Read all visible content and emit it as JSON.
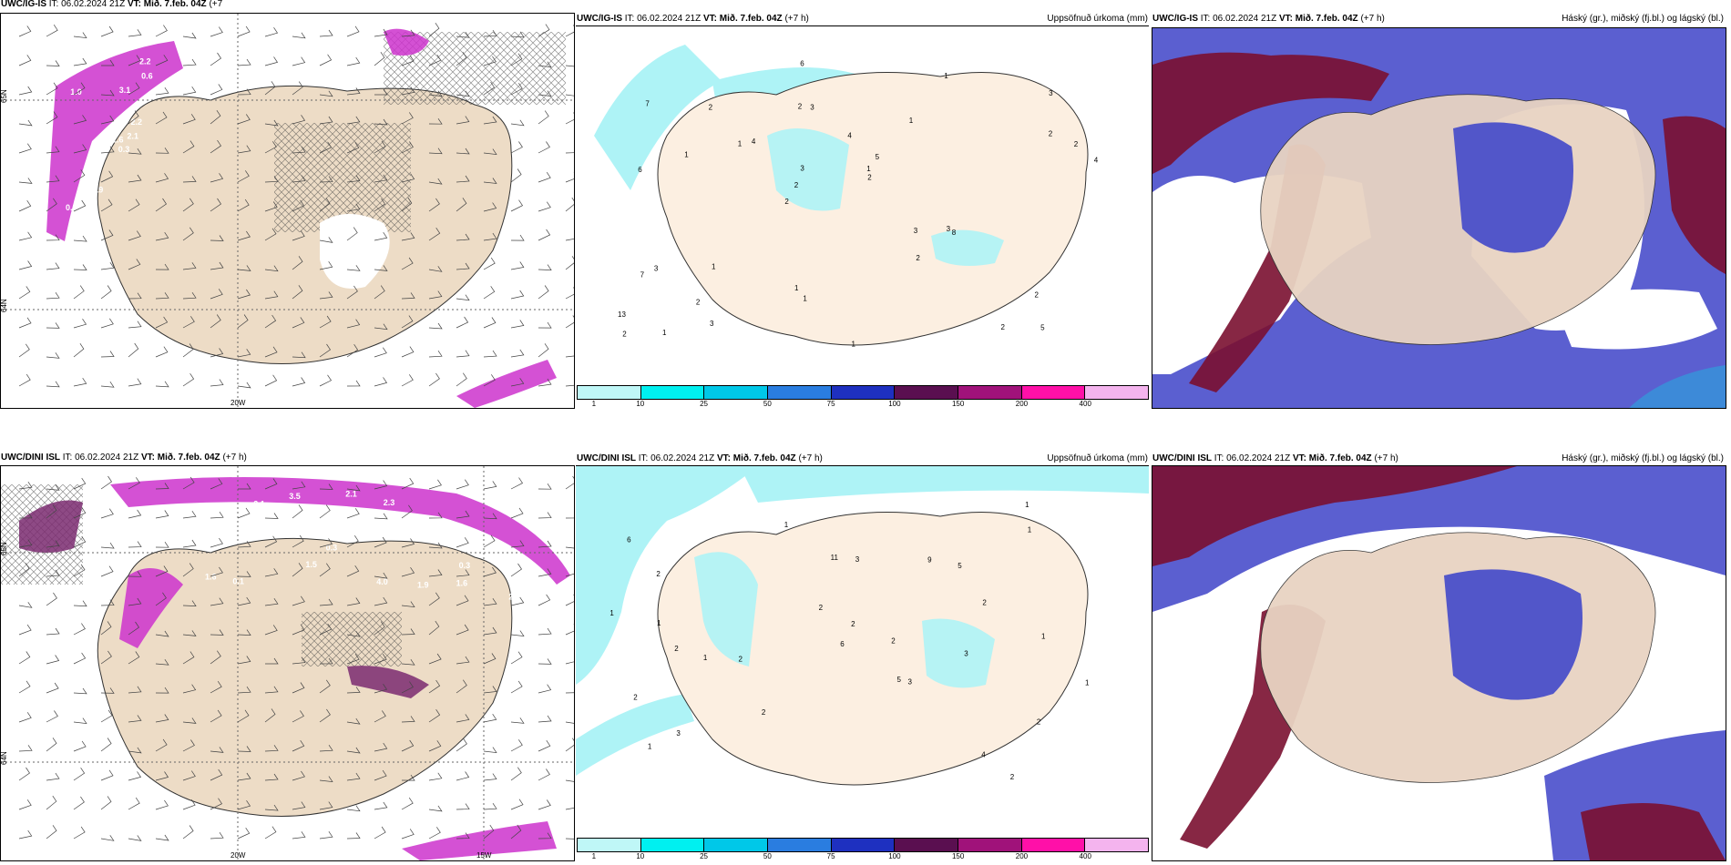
{
  "colors": {
    "land": "#eddcc6",
    "land_light": "#fcefe1",
    "precip_light": "#aef3f6",
    "purple": "#cc33cc",
    "deep_red": "#7a1030",
    "blue": "#4a4fc9"
  },
  "panels": [
    {
      "id": "ig-wind",
      "header_model": "UWC/IG-IS",
      "header_it_label": "IT:",
      "header_it": "06.02.2024 21Z",
      "header_vt_label": "VT:",
      "header_vt": "Mið. 7.feb. 04Z",
      "header_lead": "(+7",
      "header_lead2": "h)",
      "right_title": "",
      "axis_labels": [
        "65N",
        "64N",
        "20W"
      ]
    },
    {
      "id": "ig-precip",
      "header_model": "UWC/IG-IS",
      "header_it_label": "IT:",
      "header_it": "06.02.2024 21Z",
      "header_vt_label": "VT:",
      "header_vt": "Mið. 7.feb. 04Z",
      "header_lead": "(+7 h)",
      "right_title": "Uppsöfnuð úrkoma (mm)",
      "colorbar_ticks": [
        "1",
        "10",
        "25",
        "50",
        "75",
        "100",
        "150",
        "200",
        "400"
      ],
      "colorbar_colors": [
        "#bff7f7",
        "#00f0f0",
        "#00c8e8",
        "#2a7de0",
        "#1e30c0",
        "#5a0f50",
        "#a0127a",
        "#ff10a8",
        "#f4b4ee"
      ]
    },
    {
      "id": "ig-cloud",
      "header_model": "UWC/IG-IS",
      "header_it_label": "IT:",
      "header_it": "06.02.2024 21Z",
      "header_vt_label": "VT:",
      "header_vt": "Mið. 7.feb. 04Z",
      "header_lead": "(+7 h)",
      "right_title": "Háský (gr.), miðský (fj.bl.) og lágský (bl.)"
    },
    {
      "id": "dini-wind",
      "header_model": "UWC/DINI ISL",
      "header_it_label": "IT:",
      "header_it": "06.02.2024 21Z",
      "header_vt_label": "VT:",
      "header_vt": "Mið. 7.feb. 04Z",
      "header_lead": "(+7 h)",
      "right_title": "",
      "axis_labels": [
        "65N",
        "64N",
        "20W",
        "15W"
      ]
    },
    {
      "id": "dini-precip",
      "header_model": "UWC/DINI ISL",
      "header_it_label": "IT:",
      "header_it": "06.02.2024 21Z",
      "header_vt_label": "VT:",
      "header_vt": "Mið. 7.feb. 04Z",
      "header_lead": "(+7 h)",
      "right_title": "Uppsöfnuð úrkoma (mm)",
      "colorbar_ticks": [
        "1",
        "10",
        "25",
        "50",
        "75",
        "100",
        "150",
        "200",
        "400"
      ],
      "colorbar_colors": [
        "#bff7f7",
        "#00f0f0",
        "#00c8e8",
        "#2a7de0",
        "#1e30c0",
        "#5a0f50",
        "#a0127a",
        "#ff10a8",
        "#f4b4ee"
      ]
    },
    {
      "id": "dini-cloud",
      "header_model": "UWC/DINI ISL",
      "header_it_label": "IT:",
      "header_it": "06.02.2024 21Z",
      "header_vt_label": "VT:",
      "header_vt": "Mið. 7.feb. 04Z",
      "header_lead": "(+7 h)",
      "right_title": "Háský (gr.), miðský (fj.bl.) og lágský (bl.)"
    }
  ],
  "precip_labels_top": [
    "5",
    "6",
    "3",
    "2",
    "1",
    "1",
    "2",
    "4",
    "3",
    "4",
    "13",
    "2",
    "3",
    "5",
    "8",
    "7",
    "6",
    "4",
    "3",
    "2",
    "2",
    "1",
    "3",
    "2",
    "1",
    "1",
    "2",
    "2",
    "3",
    "1",
    "1",
    "1",
    "2",
    "3",
    "2",
    "1",
    "2",
    "1",
    "2",
    "7"
  ],
  "precip_labels_bottom": [
    "2",
    "2",
    "5",
    "6",
    "2",
    "2",
    "3",
    "2",
    "5",
    "11",
    "9",
    "4",
    "2",
    "1",
    "2",
    "2",
    "3",
    "2",
    "1",
    "1",
    "1",
    "3",
    "2",
    "1",
    "1",
    "1",
    "1",
    "6",
    "2",
    "1",
    "3"
  ],
  "wind_values_top": [
    "0.3",
    "1.0",
    "1.6",
    "0.8",
    "2.2",
    "0.9",
    "2.2",
    "3.1",
    "0.6",
    "2.1"
  ],
  "wind_values_bottom": [
    "0.3",
    "0.3",
    "0.3",
    "1.5",
    "2.1",
    "2.1",
    "1.6",
    "2.3",
    "1.9",
    "1.6",
    "2.2",
    "2.1",
    "0.1",
    "3.5",
    "4.0"
  ]
}
